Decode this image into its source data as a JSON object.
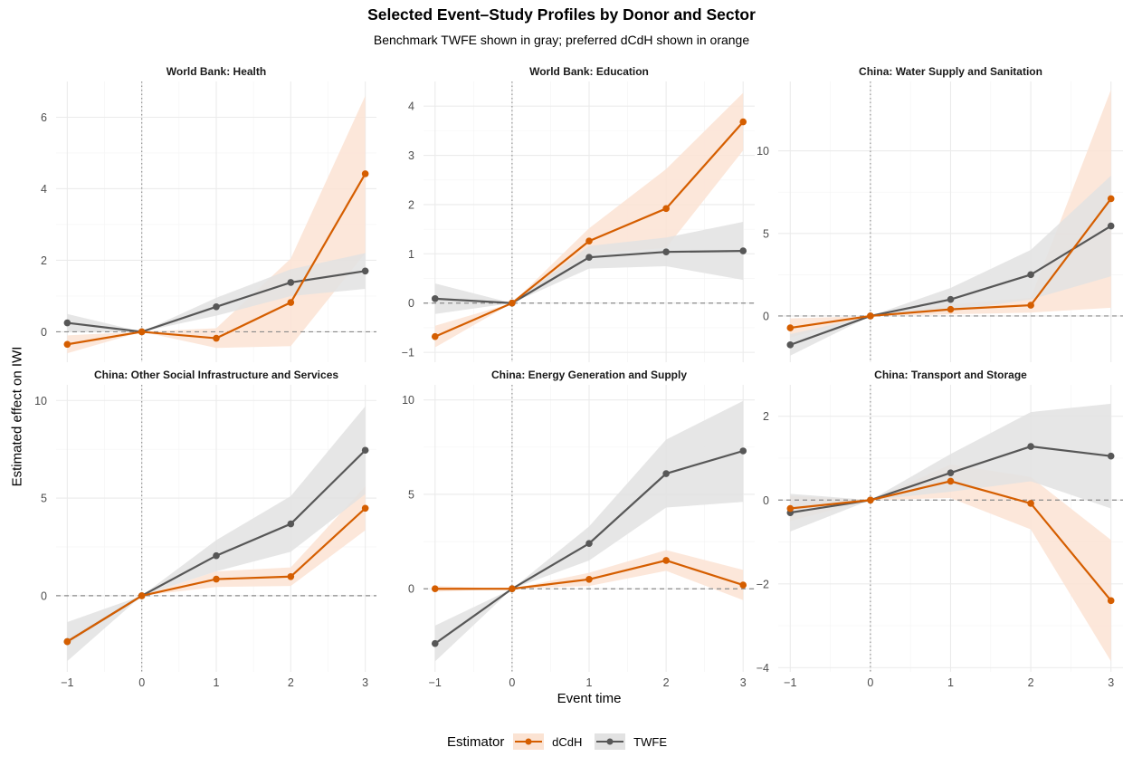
{
  "title": "Selected Event–Study Profiles by Donor and Sector",
  "subtitle": "Benchmark TWFE shown in gray; preferred dCdH shown in orange",
  "colors": {
    "dcdh": "#d55e00",
    "twfe": "#575757",
    "dcdh_band": "#fbe3d3",
    "twfe_band": "#e2e2e2",
    "grid": "#ebebeb"
  },
  "legend": {
    "title": "Estimator",
    "items": [
      "dCdH",
      "TWFE"
    ]
  },
  "chart_data": [
    {
      "type": "line",
      "title": "World Bank: Health",
      "xlabel": "Event time",
      "ylabel": "Estimated effect on IWI",
      "x": [
        -1,
        0,
        1,
        2,
        3
      ],
      "xlim": [
        -1.15,
        3.15
      ],
      "ylim": [
        -0.85,
        7.0
      ],
      "yticks": [
        0,
        2,
        4,
        6
      ],
      "series": [
        {
          "name": "dCdH",
          "values": [
            -0.35,
            0.0,
            -0.18,
            0.82,
            4.42
          ],
          "lower": [
            -0.6,
            0.0,
            -0.45,
            -0.4,
            2.2
          ],
          "upper": [
            -0.1,
            0.0,
            0.1,
            2.05,
            6.6
          ]
        },
        {
          "name": "TWFE",
          "values": [
            0.25,
            0.0,
            0.7,
            1.38,
            1.7
          ],
          "lower": [
            0.0,
            0.0,
            0.45,
            1.0,
            1.2
          ],
          "upper": [
            0.5,
            0.0,
            0.95,
            1.75,
            2.2
          ]
        }
      ]
    },
    {
      "type": "line",
      "title": "World Bank: Education",
      "xlabel": "Event time",
      "ylabel": "Estimated effect on IWI",
      "x": [
        -1,
        0,
        1,
        2,
        3
      ],
      "xlim": [
        -1.15,
        3.15
      ],
      "ylim": [
        -1.2,
        4.5
      ],
      "yticks": [
        -1,
        0,
        1,
        2,
        3,
        4
      ],
      "series": [
        {
          "name": "dCdH",
          "values": [
            -0.68,
            0.0,
            1.26,
            1.92,
            3.68
          ],
          "lower": [
            -0.9,
            0.0,
            1.0,
            1.12,
            3.1
          ],
          "upper": [
            -0.46,
            0.0,
            1.52,
            2.72,
            4.27
          ]
        },
        {
          "name": "TWFE",
          "values": [
            0.09,
            0.0,
            0.93,
            1.04,
            1.06
          ],
          "lower": [
            -0.22,
            0.0,
            0.7,
            0.75,
            0.47
          ],
          "upper": [
            0.4,
            0.0,
            1.16,
            1.33,
            1.65
          ]
        }
      ]
    },
    {
      "type": "line",
      "title": "China: Water Supply and Sanitation",
      "xlabel": "Event time",
      "ylabel": "Estimated effect on IWI",
      "x": [
        -1,
        0,
        1,
        2,
        3
      ],
      "xlim": [
        -1.15,
        3.15
      ],
      "ylim": [
        -2.8,
        14.2
      ],
      "yticks": [
        0,
        5,
        10
      ],
      "series": [
        {
          "name": "dCdH",
          "values": [
            -0.72,
            0.0,
            0.4,
            0.65,
            7.1
          ],
          "lower": [
            -1.3,
            0.0,
            0.1,
            0.2,
            0.5
          ],
          "upper": [
            -0.15,
            0.0,
            0.7,
            1.1,
            13.7
          ]
        },
        {
          "name": "TWFE",
          "values": [
            -1.75,
            0.0,
            1.0,
            2.5,
            5.45
          ],
          "lower": [
            -2.4,
            0.0,
            0.3,
            1.0,
            2.4
          ],
          "upper": [
            -1.1,
            0.0,
            1.7,
            4.0,
            8.5
          ]
        }
      ]
    },
    {
      "type": "line",
      "title": "China: Other Social Infrastructure and Services",
      "xlabel": "Event time",
      "ylabel": "Estimated effect on IWI",
      "x": [
        -1,
        0,
        1,
        2,
        3
      ],
      "xlim": [
        -1.15,
        3.15
      ],
      "ylim": [
        -3.9,
        10.8
      ],
      "yticks": [
        0,
        5,
        10
      ],
      "series": [
        {
          "name": "dCdH",
          "values": [
            -2.35,
            0.0,
            0.85,
            0.98,
            4.48
          ],
          "lower": [
            -2.55,
            0.0,
            0.45,
            0.5,
            3.35
          ],
          "upper": [
            -2.15,
            0.0,
            1.25,
            1.45,
            5.6
          ]
        },
        {
          "name": "TWFE",
          "values": [
            -2.35,
            0.0,
            2.05,
            3.68,
            7.45
          ],
          "lower": [
            -3.35,
            0.0,
            1.25,
            2.25,
            5.2
          ],
          "upper": [
            -1.35,
            0.0,
            2.85,
            5.1,
            9.7
          ]
        }
      ]
    },
    {
      "type": "line",
      "title": "China: Energy Generation and Supply",
      "xlabel": "Event time",
      "ylabel": "Estimated effect on IWI",
      "x": [
        -1,
        0,
        1,
        2,
        3
      ],
      "xlim": [
        -1.15,
        3.15
      ],
      "ylim": [
        -4.4,
        10.8
      ],
      "yticks": [
        0,
        5,
        10
      ],
      "series": [
        {
          "name": "dCdH",
          "values": [
            0.0,
            0.0,
            0.5,
            1.5,
            0.2
          ],
          "lower": [
            -0.15,
            0.0,
            0.15,
            0.95,
            -0.6
          ],
          "upper": [
            0.15,
            0.0,
            0.85,
            2.05,
            1.0
          ]
        },
        {
          "name": "TWFE",
          "values": [
            -2.9,
            0.0,
            2.4,
            6.1,
            7.3
          ],
          "lower": [
            -3.85,
            0.0,
            1.5,
            4.3,
            4.6
          ],
          "upper": [
            -1.95,
            0.0,
            3.3,
            7.9,
            9.95
          ]
        }
      ]
    },
    {
      "type": "line",
      "title": "China: Transport and Storage",
      "xlabel": "Event time",
      "ylabel": "Estimated effect on IWI",
      "x": [
        -1,
        0,
        1,
        2,
        3
      ],
      "xlim": [
        -1.15,
        3.15
      ],
      "ylim": [
        -4.1,
        2.75
      ],
      "yticks": [
        -4,
        -2,
        0,
        2
      ],
      "series": [
        {
          "name": "dCdH",
          "values": [
            -0.2,
            0.0,
            0.45,
            -0.08,
            -2.4
          ],
          "lower": [
            -0.5,
            0.0,
            0.05,
            -0.7,
            -3.85
          ],
          "upper": [
            0.1,
            0.0,
            0.85,
            0.55,
            -0.95
          ]
        },
        {
          "name": "TWFE",
          "values": [
            -0.3,
            0.0,
            0.65,
            1.28,
            1.05
          ],
          "lower": [
            -0.75,
            0.0,
            0.2,
            0.45,
            -0.2
          ],
          "upper": [
            0.15,
            0.0,
            1.1,
            2.1,
            2.3
          ]
        }
      ]
    }
  ]
}
